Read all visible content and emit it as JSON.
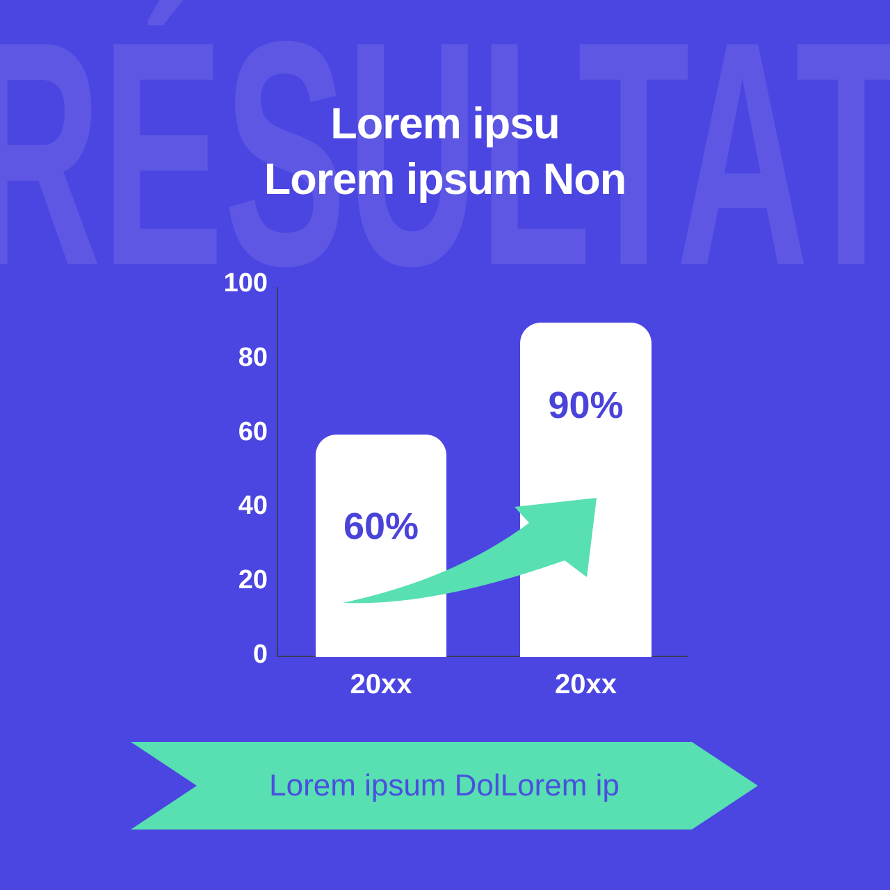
{
  "watermark": {
    "text": "RÉSULTAT"
  },
  "title": {
    "line1": "Lorem ipsu",
    "line2": "Lorem ipsum Non"
  },
  "chart_data": {
    "type": "bar",
    "title": "",
    "categories": [
      "20xx",
      "20xx"
    ],
    "values": [
      60,
      90
    ],
    "value_labels": [
      "60%",
      "90%"
    ],
    "yticks": [
      0,
      20,
      40,
      60,
      80,
      100
    ],
    "ylim": [
      0,
      100
    ],
    "xlabel": "",
    "ylabel": "",
    "grid": false,
    "legend": false,
    "bar_color": "#ffffff",
    "value_label_color": "#4a43da",
    "axis_color": "#3c3c5a",
    "tick_label_color": "#ffffff",
    "arrow_color": "#58dfb2",
    "annotations": [
      "growth arrow from first bar to second bar"
    ]
  },
  "banner": {
    "label": "Lorem ipsum DolLorem ip",
    "bg_color": "#58dfb2",
    "text_color": "#4a4fdf"
  },
  "colors": {
    "background": "#4b45e1",
    "watermark": "rgba(255,255,255,0.10)",
    "title": "#ffffff"
  }
}
